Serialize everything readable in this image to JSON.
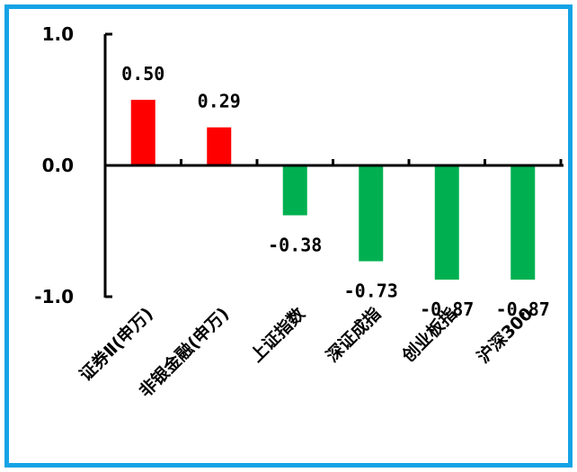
{
  "chart_data": {
    "type": "bar",
    "categories": [
      "证券Ⅱ(申万)",
      "非银金融(申万)",
      "上证指数",
      "深证成指",
      "创业板指",
      "沪深300"
    ],
    "values": [
      0.5,
      0.29,
      -0.38,
      -0.73,
      -0.87,
      -0.87
    ],
    "data_labels": [
      "0.50",
      "0.29",
      "-0.38",
      "-0.73",
      "-0.87",
      "-0.87"
    ],
    "y_ticks": [
      "1.0",
      "0.0",
      "-1.0"
    ],
    "y_tick_values": [
      1.0,
      0.0,
      -1.0
    ],
    "ylim": [
      -1.0,
      1.0
    ],
    "title": "",
    "xlabel": "",
    "ylabel": "",
    "grid": false,
    "positive_color": "#ff0000",
    "negative_color": "#00b050",
    "frame_color": "#14a3e6"
  }
}
